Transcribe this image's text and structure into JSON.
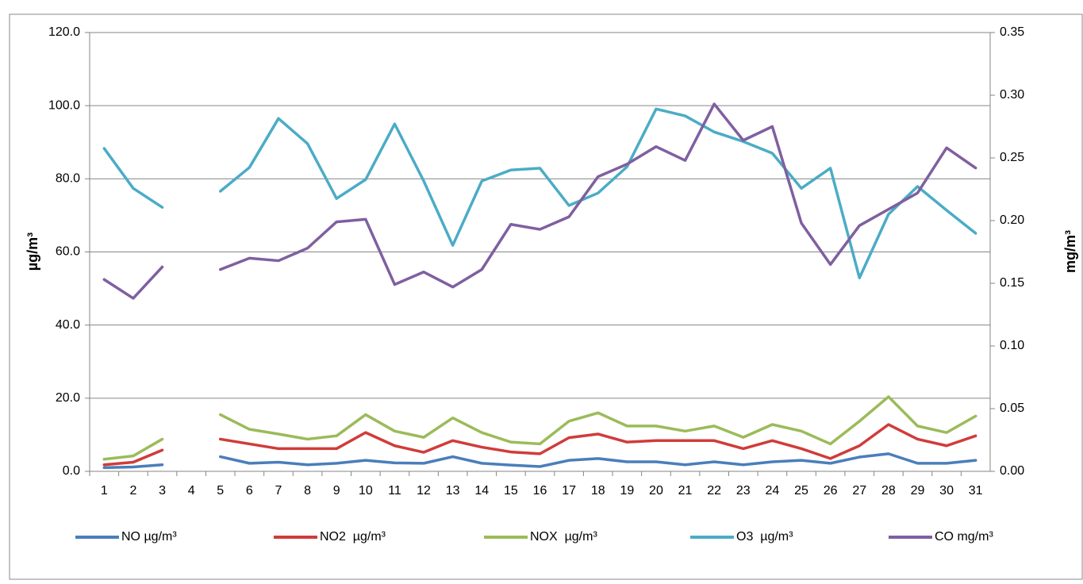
{
  "chart_data": {
    "type": "line",
    "y_label": "µg/m³",
    "y2_label": "mg/m³",
    "categories": [
      "1",
      "2",
      "3",
      "4",
      "5",
      "6",
      "7",
      "8",
      "9",
      "10",
      "11",
      "12",
      "13",
      "14",
      "15",
      "16",
      "17",
      "18",
      "19",
      "20",
      "21",
      "22",
      "23",
      "24",
      "25",
      "26",
      "27",
      "28",
      "29",
      "30",
      "31"
    ],
    "series": [
      {
        "name": "NO µg/m³",
        "color": "#4a7ebb",
        "values": [
          1.0,
          1.2,
          1.8,
          null,
          4.0,
          2.2,
          2.5,
          1.8,
          2.2,
          3.0,
          2.3,
          2.2,
          4.0,
          2.2,
          1.7,
          1.3,
          3.0,
          3.5,
          2.6,
          2.6,
          1.8,
          2.6,
          1.8,
          2.6,
          3.0,
          2.2,
          3.9,
          4.8,
          2.2,
          2.2,
          3.0
        ]
      },
      {
        "name": "NO2  µg/m³",
        "color": "#d03c3a",
        "values": [
          1.8,
          2.5,
          5.8,
          null,
          8.8,
          7.5,
          6.2,
          6.2,
          6.2,
          10.6,
          7.0,
          5.2,
          8.4,
          6.6,
          5.3,
          4.8,
          9.2,
          10.2,
          8.0,
          8.4,
          8.4,
          8.4,
          6.2,
          8.4,
          6.2,
          3.5,
          7.0,
          12.8,
          8.8,
          7.0,
          9.7
        ]
      },
      {
        "name": "NOX  µg/m³",
        "color": "#9bbb59",
        "values": [
          3.3,
          4.2,
          8.8,
          null,
          15.5,
          11.5,
          10.2,
          8.8,
          9.7,
          15.5,
          11.0,
          9.3,
          14.6,
          10.6,
          8.0,
          7.5,
          13.7,
          16.0,
          12.4,
          12.4,
          11.0,
          12.4,
          9.3,
          12.8,
          11.0,
          7.5,
          13.7,
          20.4,
          12.4,
          10.6,
          15.1
        ]
      },
      {
        "name": "O3  µg/m³",
        "color": "#4bacc6",
        "values": [
          88.3,
          77.4,
          72.2,
          null,
          76.6,
          83.1,
          96.5,
          89.6,
          74.6,
          79.8,
          95.0,
          79.4,
          61.8,
          79.4,
          82.4,
          82.9,
          72.7,
          76.1,
          83.3,
          99.1,
          97.2,
          92.8,
          90.2,
          87.0,
          77.4,
          82.9,
          52.9,
          70.3,
          77.9,
          71.4,
          65.1
        ]
      },
      {
        "name": "CO mg/m³",
        "color": "#7f5fa0",
        "axis": "y2",
        "values": [
          0.153,
          0.138,
          0.163,
          null,
          0.161,
          0.17,
          0.168,
          0.178,
          0.199,
          0.201,
          0.149,
          0.159,
          0.147,
          0.161,
          0.197,
          0.193,
          0.203,
          0.235,
          0.245,
          0.259,
          0.248,
          0.293,
          0.264,
          0.275,
          0.198,
          0.165,
          0.196,
          0.209,
          0.222,
          0.258,
          0.242
        ]
      }
    ],
    "ylim": [
      0,
      120
    ],
    "yticks": [
      {
        "value": 0,
        "label": "0.0"
      },
      {
        "value": 20,
        "label": "20.0"
      },
      {
        "value": 40,
        "label": "40.0"
      },
      {
        "value": 60,
        "label": "60.0"
      },
      {
        "value": 80,
        "label": "80.0"
      },
      {
        "value": 100,
        "label": "100.0"
      },
      {
        "value": 120,
        "label": "120.0"
      }
    ],
    "y2lim": [
      0,
      0.35
    ],
    "y2ticks": [
      {
        "value": 0,
        "label": "0.00"
      },
      {
        "value": 0.05,
        "label": "0.05"
      },
      {
        "value": 0.1,
        "label": "0.10"
      },
      {
        "value": 0.15,
        "label": "0.15"
      },
      {
        "value": 0.2,
        "label": "0.20"
      },
      {
        "value": 0.25,
        "label": "0.25"
      },
      {
        "value": 0.3,
        "label": "0.30"
      },
      {
        "value": 0.35,
        "label": "0.35"
      }
    ],
    "grid": true,
    "legend": "bottom"
  }
}
